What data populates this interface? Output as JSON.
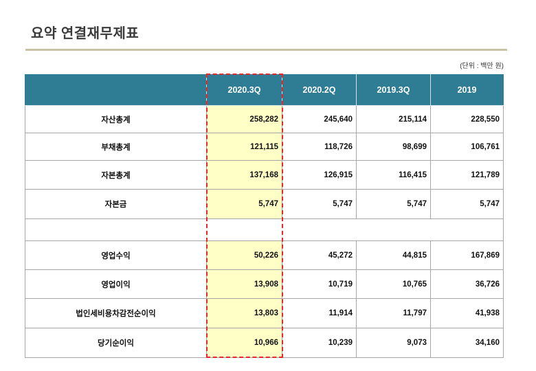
{
  "title": "요약 연결재무제표",
  "unit": "(단위 : 백만 원)",
  "colors": {
    "header_bg": "#2f7d95",
    "header_text": "#ffffff",
    "highlight_bg": "#ffffc6",
    "highlight_border": "#e8262b",
    "title_rule": "#c8c2a2",
    "grid": "#a6a6a6"
  },
  "table": {
    "headers": [
      "2020.3Q",
      "2020.2Q",
      "2019.3Q",
      "2019"
    ],
    "highlighted_column_index": 0,
    "rows": [
      {
        "label": "자산총계",
        "values": [
          "258,282",
          "245,640",
          "215,114",
          "228,550"
        ]
      },
      {
        "label": "부채총계",
        "values": [
          "121,115",
          "118,726",
          "98,699",
          "106,761"
        ]
      },
      {
        "label": "자본총계",
        "values": [
          "137,168",
          "126,915",
          "116,415",
          "121,789"
        ]
      },
      {
        "label": "자본금",
        "values": [
          "5,747",
          "5,747",
          "5,747",
          "5,747"
        ]
      },
      {
        "label": "영업수익",
        "values": [
          "50,226",
          "45,272",
          "44,815",
          "167,869"
        ]
      },
      {
        "label": "영업이익",
        "values": [
          "13,908",
          "10,719",
          "10,765",
          "36,726"
        ]
      },
      {
        "label": "법인세비용차감전순이익",
        "values": [
          "13,803",
          "11,914",
          "11,797",
          "41,938"
        ]
      },
      {
        "label": "당기순이익",
        "values": [
          "10,966",
          "10,239",
          "9,073",
          "34,160"
        ]
      }
    ]
  }
}
